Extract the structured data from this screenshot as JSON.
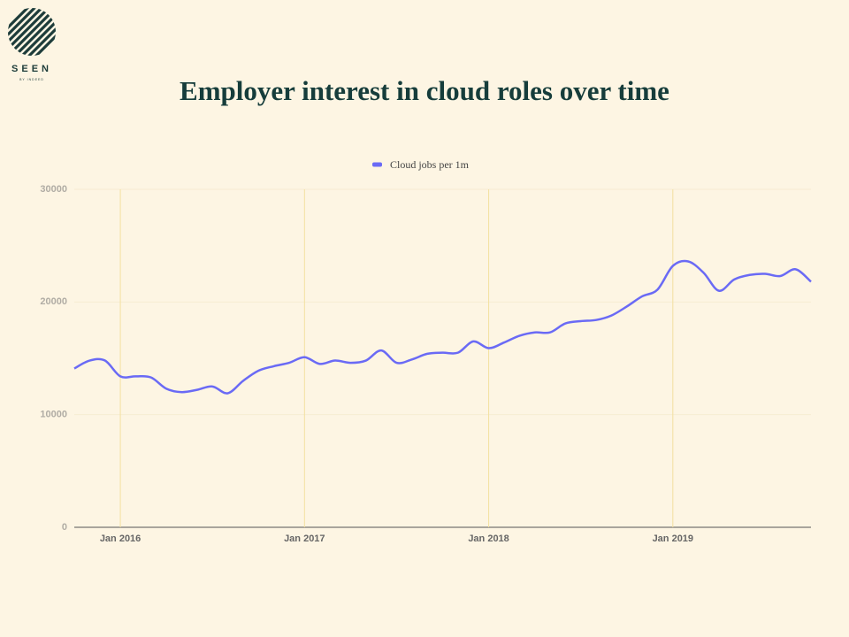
{
  "logo": {
    "name": "SEEN",
    "tagline": "BY INDEED"
  },
  "chart_data": {
    "type": "line",
    "title": "Employer interest in cloud roles over time",
    "x": [
      "2015-10",
      "2015-11",
      "2015-12",
      "2016-01",
      "2016-02",
      "2016-03",
      "2016-04",
      "2016-05",
      "2016-06",
      "2016-07",
      "2016-08",
      "2016-09",
      "2016-10",
      "2016-11",
      "2016-12",
      "2017-01",
      "2017-02",
      "2017-03",
      "2017-04",
      "2017-05",
      "2017-06",
      "2017-07",
      "2017-08",
      "2017-09",
      "2017-10",
      "2017-11",
      "2017-12",
      "2018-01",
      "2018-02",
      "2018-03",
      "2018-04",
      "2018-05",
      "2018-06",
      "2018-07",
      "2018-08",
      "2018-09",
      "2018-10",
      "2018-11",
      "2018-12",
      "2019-01",
      "2019-02",
      "2019-03",
      "2019-04",
      "2019-05",
      "2019-06",
      "2019-07",
      "2019-08",
      "2019-09",
      "2019-10"
    ],
    "series": [
      {
        "name": "Cloud jobs per 1m",
        "color": "#6a6af5",
        "values": [
          14100,
          14800,
          14800,
          13400,
          13400,
          13300,
          12300,
          12000,
          12200,
          12500,
          11900,
          13000,
          13900,
          14300,
          14600,
          15100,
          14500,
          14800,
          14600,
          14800,
          15700,
          14600,
          14900,
          15400,
          15500,
          15500,
          16500,
          15900,
          16400,
          17000,
          17300,
          17300,
          18100,
          18300,
          18400,
          18800,
          19600,
          20500,
          21100,
          23200,
          23600,
          22600,
          21000,
          22000,
          22400,
          22500,
          22300,
          22900,
          21800
        ]
      }
    ],
    "xlim": [
      "2015-10",
      "2019-10"
    ],
    "xticks": [
      {
        "value": "2016-01",
        "label": "Jan 2016"
      },
      {
        "value": "2017-01",
        "label": "Jan 2017"
      },
      {
        "value": "2018-01",
        "label": "Jan 2018"
      },
      {
        "value": "2019-01",
        "label": "Jan 2019"
      }
    ],
    "ylim": [
      0,
      30000
    ],
    "yticks": [
      0,
      10000,
      20000,
      30000
    ],
    "grid": true,
    "legend": "top"
  }
}
